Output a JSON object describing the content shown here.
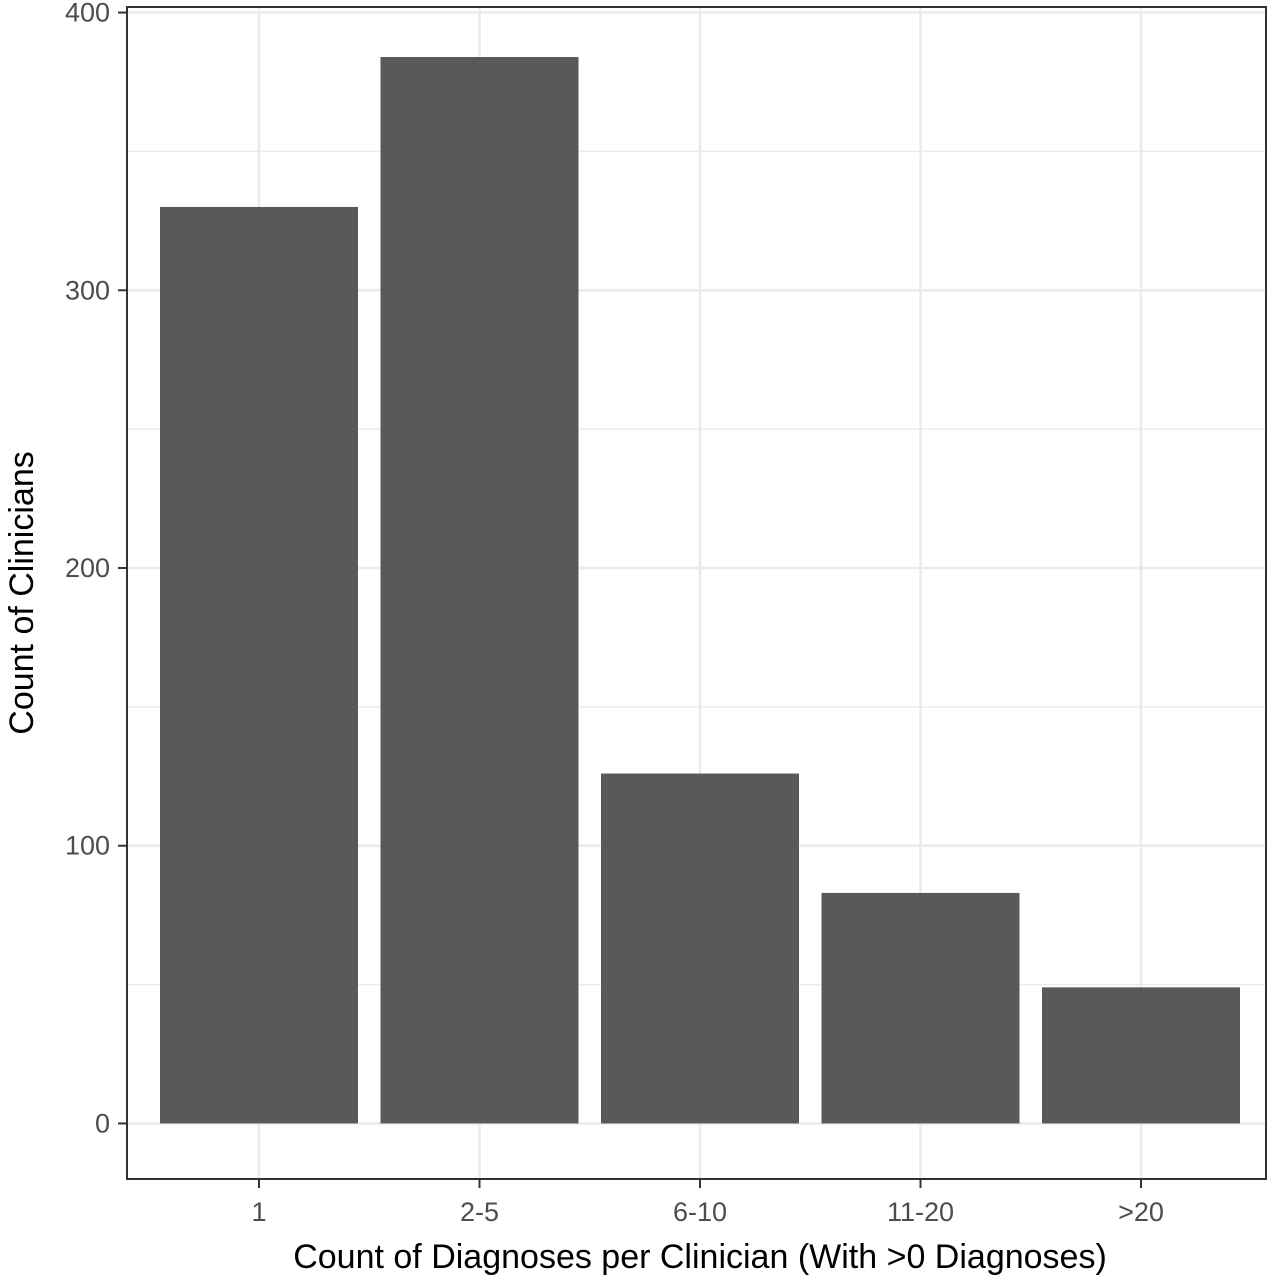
{
  "chart_data": {
    "type": "bar",
    "categories": [
      "1",
      "2-5",
      "6-10",
      "11-20",
      ">20"
    ],
    "values": [
      330,
      384,
      126,
      83,
      49
    ],
    "xlabel": "Count of Diagnoses per Clinician (With >0 Diagnoses)",
    "ylabel": "Count of Clinicians",
    "ylim": [
      -20,
      402
    ],
    "yticks": [
      0,
      100,
      200,
      300,
      400
    ],
    "ytick_labels": [
      "0",
      "100",
      "200",
      "300",
      "400"
    ],
    "y_minor_gridlines": [
      50,
      150,
      250,
      350
    ],
    "grid": true,
    "legend": "none",
    "colors": {
      "bar": "#595959",
      "grid": "#ebebeb",
      "panel_border": "#333333",
      "tick_label": "#4d4d4d",
      "axis_title": "#000000"
    }
  }
}
